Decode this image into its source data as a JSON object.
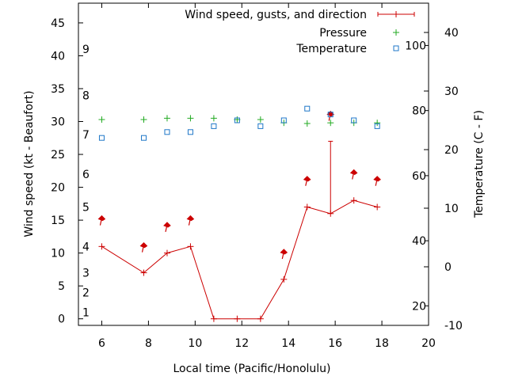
{
  "chart_data": {
    "type": "line",
    "xlabel": "Local time (Pacific/Honolulu)",
    "ylabel_left": "Wind speed (kt - Beaufort)",
    "ylabel_right": "Temperature (C - F)",
    "xlim": [
      5,
      20
    ],
    "ylim": [
      -1,
      48
    ],
    "temp_c_lim": [
      -10,
      45
    ],
    "x_ticks": [
      6,
      8,
      10,
      12,
      14,
      16,
      18,
      20
    ],
    "y_ticks": [
      0,
      5,
      10,
      15,
      20,
      25,
      30,
      35,
      40,
      45
    ],
    "celsius_ticks": [
      -10,
      0,
      10,
      20,
      30,
      40
    ],
    "fahrenheit_ticks": [
      20,
      40,
      60,
      80,
      100
    ],
    "beaufort_labels": [
      {
        "label": "1",
        "kt": 1
      },
      {
        "label": "2",
        "kt": 4
      },
      {
        "label": "3",
        "kt": 7
      },
      {
        "label": "4",
        "kt": 11
      },
      {
        "label": "5",
        "kt": 17
      },
      {
        "label": "6",
        "kt": 22
      },
      {
        "label": "7",
        "kt": 28
      },
      {
        "label": "8",
        "kt": 34
      },
      {
        "label": "9",
        "kt": 41
      }
    ],
    "legend": [
      {
        "name": "Wind speed, gusts, and direction",
        "color": "#cc0000",
        "marker": "line-plus"
      },
      {
        "name": "Pressure",
        "color": "#22aa22",
        "marker": "plus"
      },
      {
        "name": "Temperature",
        "color": "#1f77c8",
        "marker": "square"
      }
    ],
    "series": [
      {
        "name": "Wind speed, gusts, and direction",
        "color": "#cc0000",
        "x": [
          6,
          7.8,
          8.8,
          9.8,
          10.8,
          11.8,
          12.8,
          13.8,
          14.8,
          15.8,
          16.8,
          17.8
        ],
        "values": [
          11,
          7,
          10,
          11,
          0,
          0,
          0,
          6,
          17,
          16,
          18,
          17
        ],
        "gusts": [
          null,
          null,
          null,
          null,
          null,
          null,
          null,
          null,
          null,
          27,
          null,
          null
        ]
      },
      {
        "name": "Wind direction arrows",
        "color": "#cc0000",
        "x": [
          6,
          7.8,
          8.8,
          9.8,
          13.8,
          14.8,
          15.8,
          16.8,
          17.8
        ],
        "values": [
          15.3,
          11.2,
          14.3,
          15.3,
          10.2,
          21.3,
          31.2,
          22.3,
          21.3
        ]
      },
      {
        "name": "Pressure",
        "color": "#22aa22",
        "x": [
          6,
          7.8,
          8.8,
          9.8,
          10.8,
          11.8,
          12.8,
          13.8,
          14.8,
          15.8,
          16.8,
          17.8
        ],
        "values": [
          30.3,
          30.3,
          30.5,
          30.5,
          30.5,
          30.3,
          30.3,
          29.8,
          29.7,
          29.8,
          29.8,
          29.8
        ]
      },
      {
        "name": "Temperature",
        "color": "#1f77c8",
        "x": [
          6,
          7.8,
          8.8,
          9.8,
          10.8,
          11.8,
          12.8,
          13.8,
          14.8,
          15.8,
          16.8,
          17.8
        ],
        "values_c": [
          22,
          22,
          23,
          23,
          24,
          25,
          24,
          25,
          27,
          26,
          25,
          24
        ]
      }
    ]
  }
}
